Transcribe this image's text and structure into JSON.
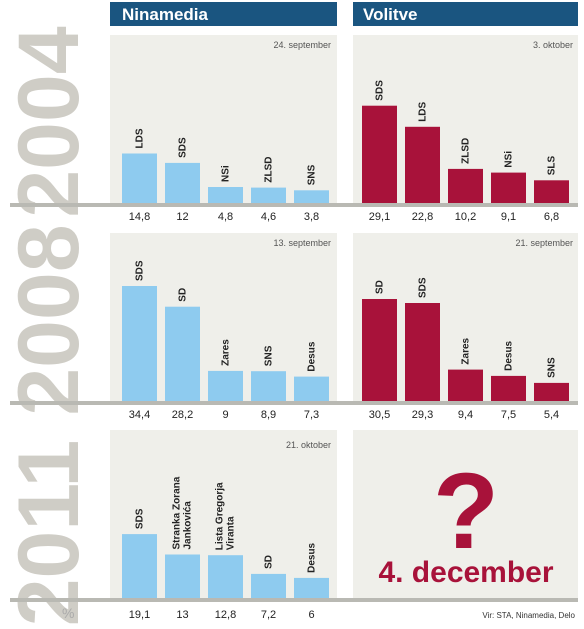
{
  "headers": {
    "left": "Ninamedia",
    "right": "Volitve"
  },
  "source": "Vir: STA, Ninamedia, Delo",
  "percent_sign": "%",
  "pending": {
    "mark": "?",
    "date": "4. december"
  },
  "colors": {
    "ninamedia_bar": "#8ecbef",
    "volitve_bar": "#a8123a",
    "header": "#1a5580",
    "panel": "#efefea",
    "year": "#cfcdc6"
  },
  "chart_data": [
    {
      "type": "bar",
      "year": "2004",
      "source": "Ninamedia",
      "date": "24. september",
      "categories": [
        "LDS",
        "SDS",
        "NSi",
        "ZLSD",
        "SNS"
      ],
      "labels": [
        "14,8",
        "12",
        "4,8",
        "4,6",
        "3,8"
      ],
      "values": [
        14.8,
        12,
        4.8,
        4.6,
        3.8
      ]
    },
    {
      "type": "bar",
      "year": "2004",
      "source": "Volitve",
      "date": "3. oktober",
      "categories": [
        "SDS",
        "LDS",
        "ZLSD",
        "NSi",
        "SLS"
      ],
      "labels": [
        "29,1",
        "22,8",
        "10,2",
        "9,1",
        "6,8"
      ],
      "values": [
        29.1,
        22.8,
        10.2,
        9.1,
        6.8
      ]
    },
    {
      "type": "bar",
      "year": "2008",
      "source": "Ninamedia",
      "date": "13. september",
      "categories": [
        "SDS",
        "SD",
        "Zares",
        "SNS",
        "Desus"
      ],
      "labels": [
        "34,4",
        "28,2",
        "9",
        "8,9",
        "7,3"
      ],
      "values": [
        34.4,
        28.2,
        9,
        8.9,
        7.3
      ]
    },
    {
      "type": "bar",
      "year": "2008",
      "source": "Volitve",
      "date": "21. september",
      "categories": [
        "SD",
        "SDS",
        "Zares",
        "Desus",
        "SNS"
      ],
      "labels": [
        "30,5",
        "29,3",
        "9,4",
        "7,5",
        "5,4"
      ],
      "values": [
        30.5,
        29.3,
        9.4,
        7.5,
        5.4
      ]
    },
    {
      "type": "bar",
      "year": "2011",
      "source": "Ninamedia",
      "date": "21. oktober",
      "categories": [
        "SDS",
        "Stranka Zorana Jankovića",
        "Lista Gregorja Viranta",
        "SD",
        "Desus"
      ],
      "labels": [
        "19,1",
        "13",
        "12,8",
        "7,2",
        "6"
      ],
      "values": [
        19.1,
        13,
        12.8,
        7.2,
        6
      ]
    }
  ]
}
